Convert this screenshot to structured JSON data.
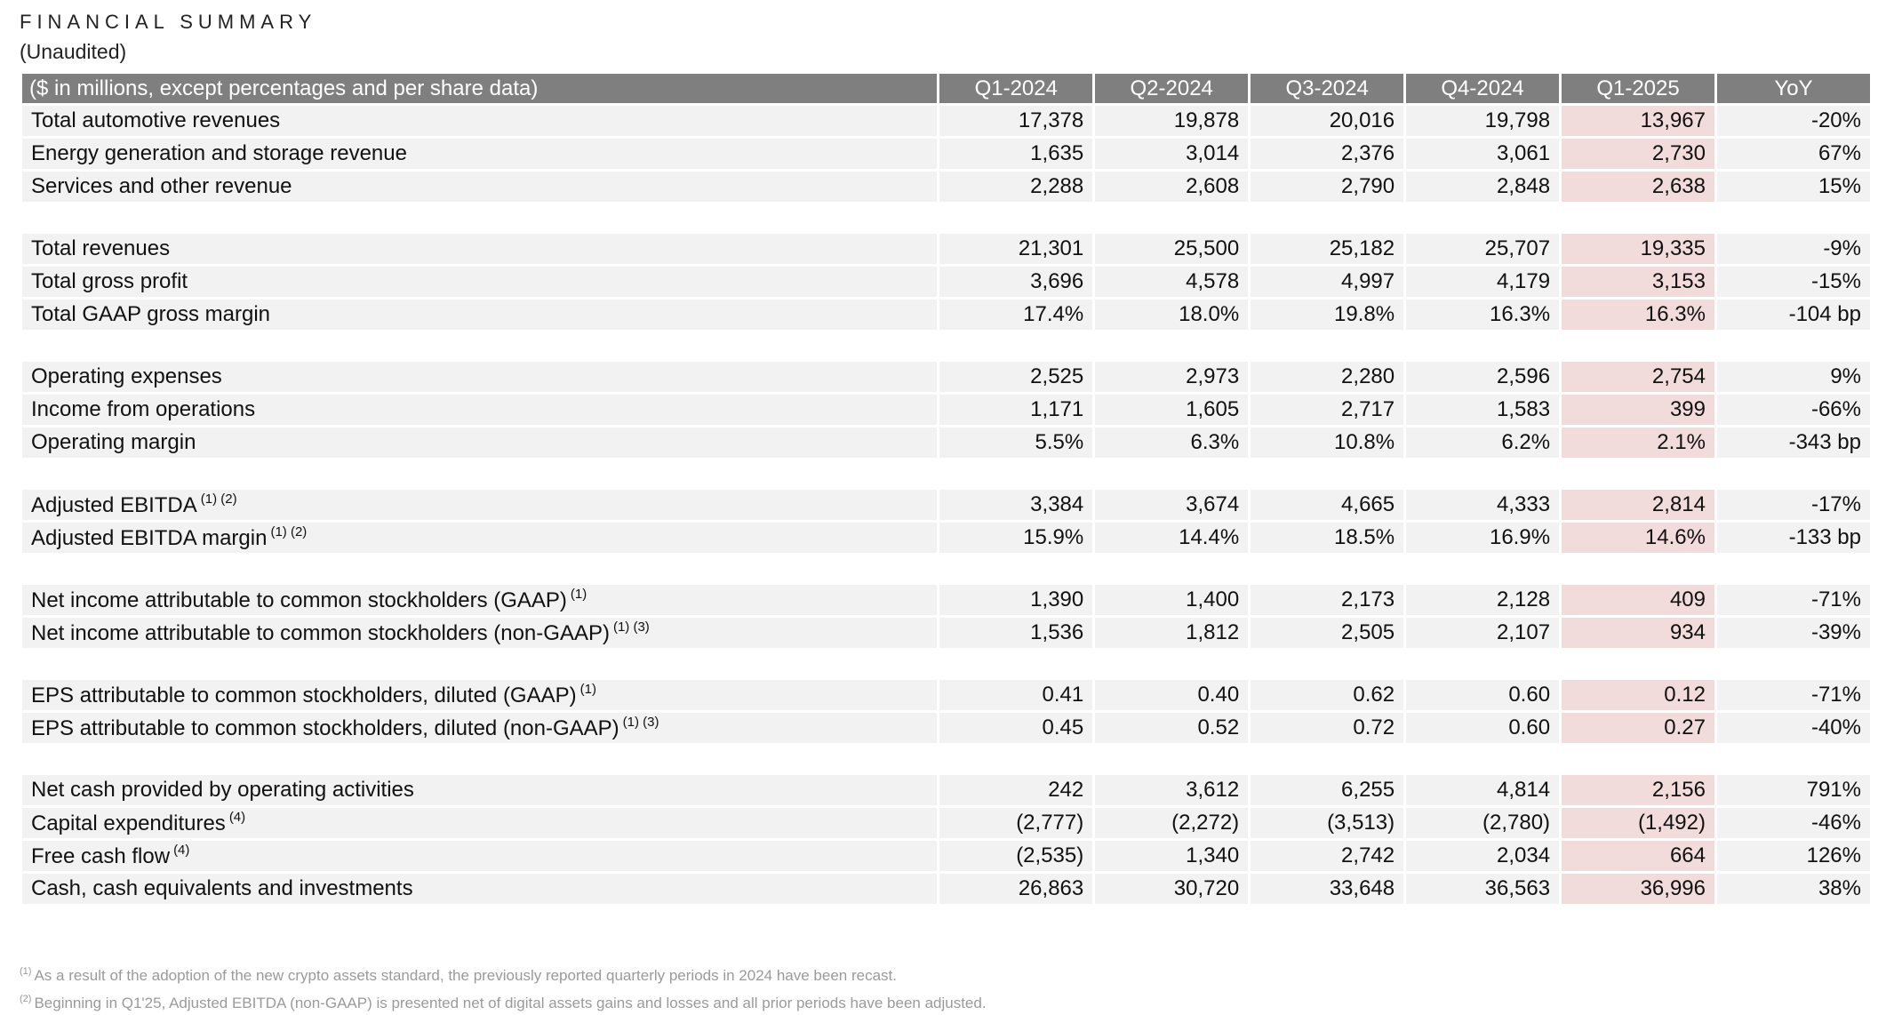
{
  "title": "FINANCIAL SUMMARY",
  "subtitle": "(Unaudited)",
  "table": {
    "headers": [
      "($ in millions, except percentages and per share data)",
      "Q1-2024",
      "Q2-2024",
      "Q3-2024",
      "Q4-2024",
      "Q1-2025",
      "YoY"
    ],
    "rows": [
      {
        "label": "Total automotive revenues",
        "note": "",
        "values": [
          "17,378",
          "19,878",
          "20,016",
          "19,798",
          "13,967",
          "-20%"
        ]
      },
      {
        "label": "Energy generation and storage revenue",
        "note": "",
        "values": [
          "1,635",
          "3,014",
          "2,376",
          "3,061",
          "2,730",
          "67%"
        ]
      },
      {
        "label": "Services and other revenue",
        "note": "",
        "values": [
          "2,288",
          "2,608",
          "2,790",
          "2,848",
          "2,638",
          "15%"
        ]
      },
      {
        "spacer": true
      },
      {
        "label": "Total revenues",
        "note": "",
        "values": [
          "21,301",
          "25,500",
          "25,182",
          "25,707",
          "19,335",
          "-9%"
        ]
      },
      {
        "label": "Total gross profit",
        "note": "",
        "values": [
          "3,696",
          "4,578",
          "4,997",
          "4,179",
          "3,153",
          "-15%"
        ]
      },
      {
        "label": "Total GAAP gross margin",
        "note": "",
        "values": [
          "17.4%",
          "18.0%",
          "19.8%",
          "16.3%",
          "16.3%",
          "-104 bp"
        ]
      },
      {
        "spacer": true
      },
      {
        "label": "Operating expenses",
        "note": "",
        "values": [
          "2,525",
          "2,973",
          "2,280",
          "2,596",
          "2,754",
          "9%"
        ]
      },
      {
        "label": "Income from operations",
        "note": "",
        "values": [
          "1,171",
          "1,605",
          "2,717",
          "1,583",
          "399",
          "-66%"
        ]
      },
      {
        "label": "Operating margin",
        "note": "",
        "values": [
          "5.5%",
          "6.3%",
          "10.8%",
          "6.2%",
          "2.1%",
          "-343 bp"
        ]
      },
      {
        "spacer": true
      },
      {
        "label": "Adjusted EBITDA",
        "note": "(1) (2)",
        "values": [
          "3,384",
          "3,674",
          "4,665",
          "4,333",
          "2,814",
          "-17%"
        ]
      },
      {
        "label": "Adjusted EBITDA margin",
        "note": "(1) (2)",
        "values": [
          "15.9%",
          "14.4%",
          "18.5%",
          "16.9%",
          "14.6%",
          "-133 bp"
        ]
      },
      {
        "spacer": true
      },
      {
        "label": "Net income attributable to common stockholders (GAAP)",
        "note": "(1)",
        "values": [
          "1,390",
          "1,400",
          "2,173",
          "2,128",
          "409",
          "-71%"
        ]
      },
      {
        "label": "Net income attributable to common stockholders (non-GAAP)",
        "note": "(1) (3)",
        "values": [
          "1,536",
          "1,812",
          "2,505",
          "2,107",
          "934",
          "-39%"
        ]
      },
      {
        "spacer": true
      },
      {
        "label": "EPS attributable to common stockholders, diluted (GAAP)",
        "note": "(1)",
        "values": [
          "0.41",
          "0.40",
          "0.62",
          "0.60",
          "0.12",
          "-71%"
        ]
      },
      {
        "label": "EPS attributable to common stockholders, diluted (non-GAAP)",
        "note": "(1) (3)",
        "values": [
          "0.45",
          "0.52",
          "0.72",
          "0.60",
          "0.27",
          "-40%"
        ]
      },
      {
        "spacer": true
      },
      {
        "label": "Net cash provided by operating activities",
        "note": "",
        "values": [
          "242",
          "3,612",
          "6,255",
          "4,814",
          "2,156",
          "791%"
        ]
      },
      {
        "label": "Capital expenditures",
        "note": "(4)",
        "values": [
          "(2,777)",
          "(2,272)",
          "(3,513)",
          "(2,780)",
          "(1,492)",
          "-46%"
        ]
      },
      {
        "label": "Free cash flow",
        "note": "(4)",
        "values": [
          "(2,535)",
          "1,340",
          "2,742",
          "2,034",
          "664",
          "126%"
        ]
      },
      {
        "label": "Cash, cash equivalents and investments",
        "note": "",
        "values": [
          "26,863",
          "30,720",
          "33,648",
          "36,563",
          "36,996",
          "38%"
        ]
      }
    ]
  },
  "footnotes": [
    {
      "mark": "(1)",
      "text": "As a result of the adoption of the new crypto assets standard, the previously reported quarterly periods in 2024 have been recast."
    },
    {
      "mark": "(2)",
      "text": "Beginning in Q1'25, Adjusted EBITDA (non-GAAP) is presented net of digital assets gains and losses and all prior periods have been adjusted."
    }
  ],
  "colors": {
    "header_bg": "#7f7f7f",
    "row_bg": "#f2f2f2",
    "highlight_bg": "#f2dcdb"
  }
}
